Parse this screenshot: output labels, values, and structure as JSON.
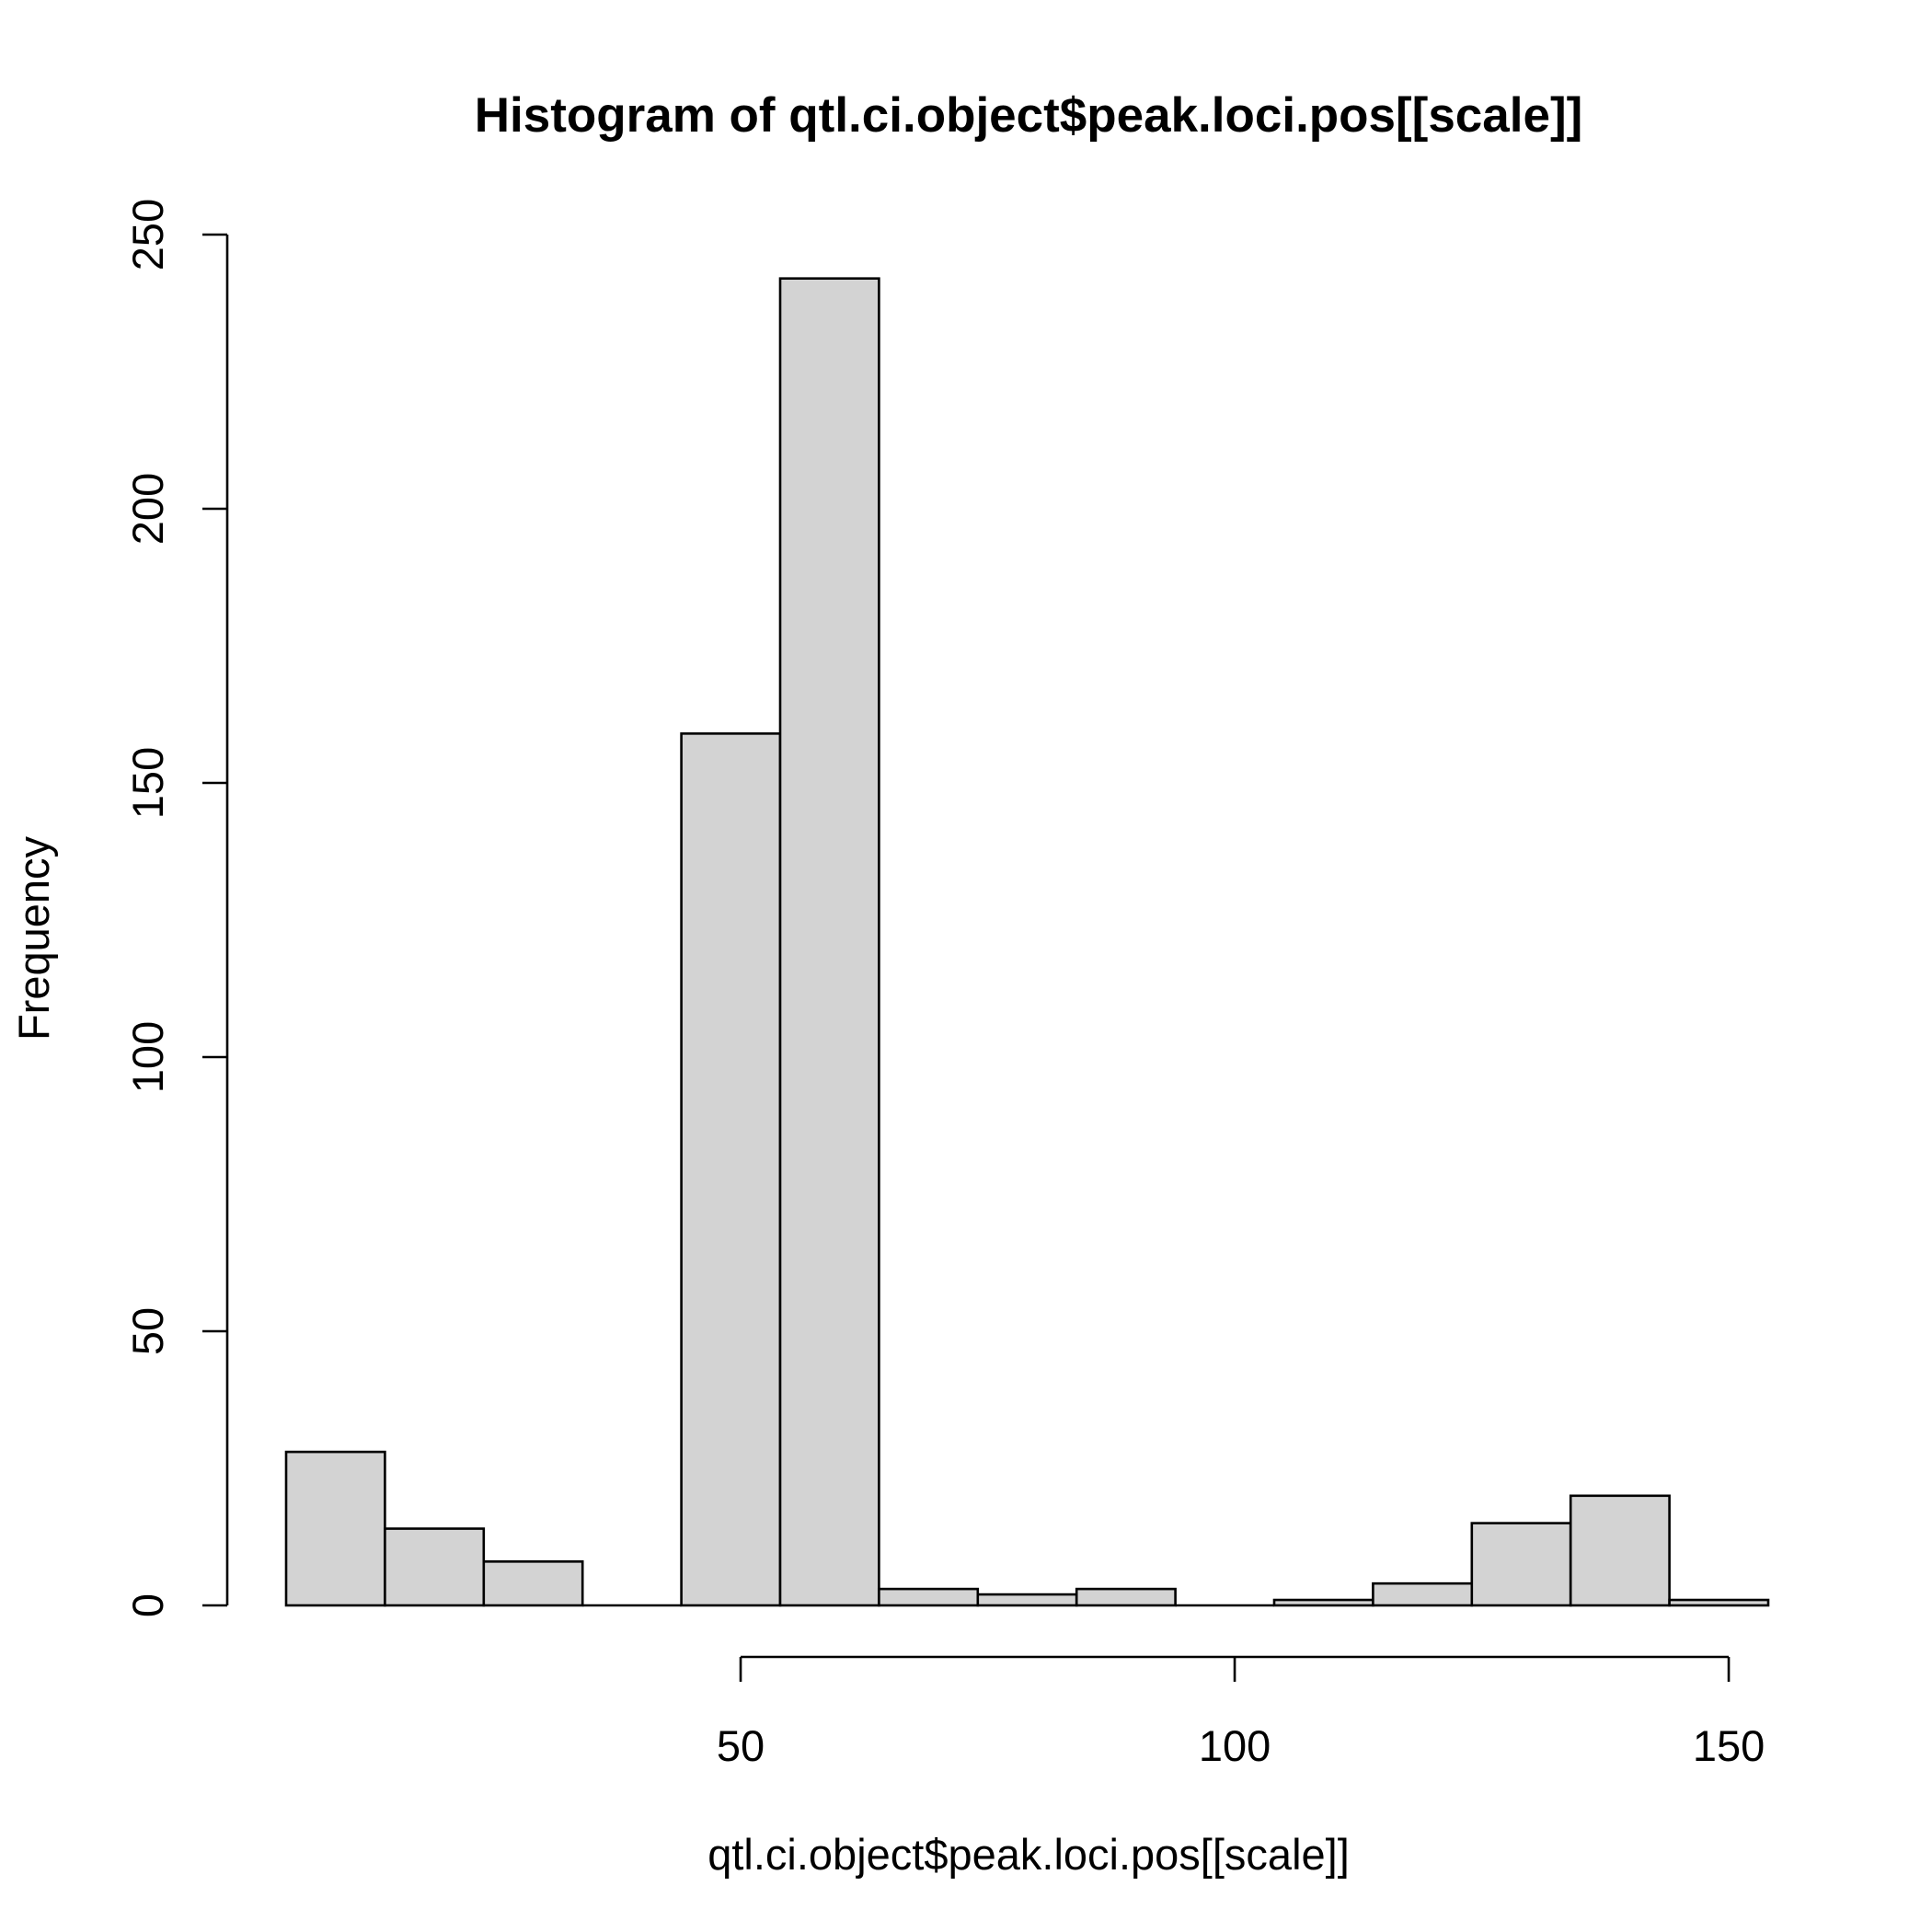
{
  "chart_data": {
    "type": "bar",
    "title": "Histogram of qtl.ci.object$peak.loci.pos[[scale]]",
    "xlabel": "qtl.ci.object$peak.loci.pos[[scale]]",
    "ylabel": "Frequency",
    "bins": [
      {
        "x0": 4,
        "x1": 14,
        "count": 28
      },
      {
        "x0": 14,
        "x1": 24,
        "count": 14
      },
      {
        "x0": 24,
        "x1": 34,
        "count": 8
      },
      {
        "x0": 34,
        "x1": 44,
        "count": 0
      },
      {
        "x0": 44,
        "x1": 54,
        "count": 159
      },
      {
        "x0": 54,
        "x1": 64,
        "count": 242
      },
      {
        "x0": 64,
        "x1": 74,
        "count": 3
      },
      {
        "x0": 74,
        "x1": 84,
        "count": 2
      },
      {
        "x0": 84,
        "x1": 94,
        "count": 3
      },
      {
        "x0": 94,
        "x1": 104,
        "count": 0
      },
      {
        "x0": 104,
        "x1": 114,
        "count": 1
      },
      {
        "x0": 114,
        "x1": 124,
        "count": 4
      },
      {
        "x0": 124,
        "x1": 134,
        "count": 15
      },
      {
        "x0": 134,
        "x1": 144,
        "count": 20
      },
      {
        "x0": 144,
        "x1": 154,
        "count": 1
      }
    ],
    "xlim": [
      4,
      154
    ],
    "ylim": [
      0,
      250
    ],
    "x_ticks": [
      {
        "value": 50,
        "label": "50"
      },
      {
        "value": 100,
        "label": "100"
      },
      {
        "value": 150,
        "label": "150"
      }
    ],
    "y_ticks": [
      {
        "value": 0,
        "label": "0"
      },
      {
        "value": 50,
        "label": "50"
      },
      {
        "value": 100,
        "label": "100"
      },
      {
        "value": 150,
        "label": "150"
      },
      {
        "value": 200,
        "label": "200"
      },
      {
        "value": 250,
        "label": "250"
      }
    ],
    "bar_fill": "#d3d3d3",
    "bar_stroke": "#000000",
    "grid": false,
    "legend": "none"
  }
}
